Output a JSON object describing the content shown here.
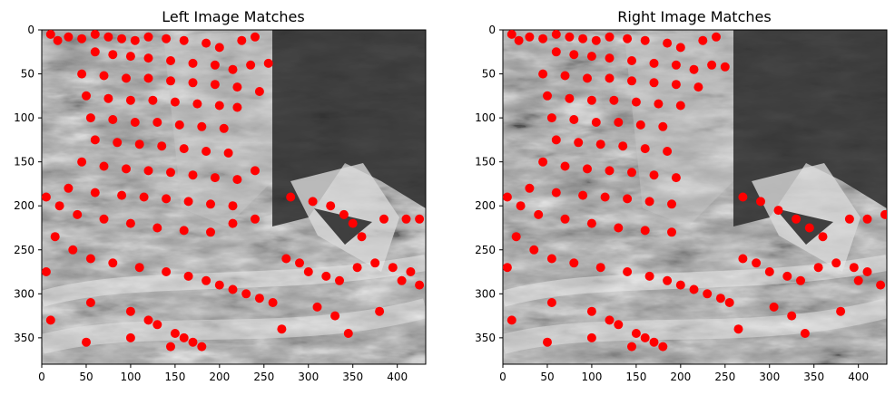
{
  "figure": {
    "background": "#ffffff",
    "point_color": "#ff0000"
  },
  "chart_data": [
    {
      "type": "scatter",
      "title": "Left Image Matches",
      "xlim": [
        0,
        432
      ],
      "ylim": [
        380,
        0
      ],
      "xticks": [
        0,
        50,
        100,
        150,
        200,
        250,
        300,
        350,
        400
      ],
      "yticks": [
        0,
        50,
        100,
        150,
        200,
        250,
        300,
        350
      ],
      "background_image": "grayscale painting with brush strokes",
      "series": [
        {
          "color": "#ff0000",
          "points": [
            [
              10,
              5
            ],
            [
              18,
              12
            ],
            [
              30,
              8
            ],
            [
              45,
              10
            ],
            [
              60,
              5
            ],
            [
              75,
              8
            ],
            [
              90,
              10
            ],
            [
              105,
              12
            ],
            [
              120,
              8
            ],
            [
              140,
              10
            ],
            [
              160,
              12
            ],
            [
              185,
              15
            ],
            [
              200,
              20
            ],
            [
              225,
              12
            ],
            [
              240,
              8
            ],
            [
              60,
              25
            ],
            [
              80,
              28
            ],
            [
              100,
              30
            ],
            [
              120,
              32
            ],
            [
              145,
              35
            ],
            [
              170,
              38
            ],
            [
              195,
              40
            ],
            [
              215,
              45
            ],
            [
              235,
              40
            ],
            [
              255,
              38
            ],
            [
              45,
              50
            ],
            [
              70,
              52
            ],
            [
              95,
              55
            ],
            [
              120,
              55
            ],
            [
              145,
              58
            ],
            [
              170,
              60
            ],
            [
              195,
              62
            ],
            [
              220,
              65
            ],
            [
              245,
              70
            ],
            [
              50,
              75
            ],
            [
              75,
              78
            ],
            [
              100,
              80
            ],
            [
              125,
              80
            ],
            [
              150,
              82
            ],
            [
              175,
              84
            ],
            [
              200,
              86
            ],
            [
              220,
              88
            ],
            [
              55,
              100
            ],
            [
              80,
              102
            ],
            [
              105,
              105
            ],
            [
              130,
              105
            ],
            [
              155,
              108
            ],
            [
              180,
              110
            ],
            [
              205,
              112
            ],
            [
              60,
              125
            ],
            [
              85,
              128
            ],
            [
              110,
              130
            ],
            [
              135,
              132
            ],
            [
              160,
              135
            ],
            [
              185,
              138
            ],
            [
              210,
              140
            ],
            [
              45,
              150
            ],
            [
              70,
              155
            ],
            [
              95,
              158
            ],
            [
              120,
              160
            ],
            [
              145,
              162
            ],
            [
              170,
              165
            ],
            [
              195,
              168
            ],
            [
              220,
              170
            ],
            [
              240,
              160
            ],
            [
              30,
              180
            ],
            [
              60,
              185
            ],
            [
              90,
              188
            ],
            [
              115,
              190
            ],
            [
              140,
              192
            ],
            [
              165,
              195
            ],
            [
              190,
              198
            ],
            [
              215,
              200
            ],
            [
              5,
              190
            ],
            [
              20,
              200
            ],
            [
              40,
              210
            ],
            [
              70,
              215
            ],
            [
              100,
              220
            ],
            [
              130,
              225
            ],
            [
              160,
              228
            ],
            [
              190,
              230
            ],
            [
              215,
              220
            ],
            [
              240,
              215
            ],
            [
              280,
              190
            ],
            [
              305,
              195
            ],
            [
              325,
              200
            ],
            [
              340,
              210
            ],
            [
              350,
              220
            ],
            [
              360,
              235
            ],
            [
              385,
              215
            ],
            [
              410,
              215
            ],
            [
              425,
              215
            ],
            [
              15,
              235
            ],
            [
              35,
              250
            ],
            [
              55,
              260
            ],
            [
              80,
              265
            ],
            [
              110,
              270
            ],
            [
              140,
              275
            ],
            [
              165,
              280
            ],
            [
              185,
              285
            ],
            [
              200,
              290
            ],
            [
              215,
              295
            ],
            [
              230,
              300
            ],
            [
              245,
              305
            ],
            [
              260,
              310
            ],
            [
              275,
              260
            ],
            [
              290,
              265
            ],
            [
              300,
              275
            ],
            [
              320,
              280
            ],
            [
              335,
              285
            ],
            [
              355,
              270
            ],
            [
              375,
              265
            ],
            [
              395,
              270
            ],
            [
              415,
              275
            ],
            [
              425,
              290
            ],
            [
              5,
              275
            ],
            [
              55,
              310
            ],
            [
              100,
              320
            ],
            [
              120,
              330
            ],
            [
              130,
              335
            ],
            [
              150,
              345
            ],
            [
              160,
              350
            ],
            [
              170,
              355
            ],
            [
              180,
              360
            ],
            [
              270,
              340
            ],
            [
              310,
              315
            ],
            [
              330,
              325
            ],
            [
              345,
              345
            ],
            [
              10,
              330
            ],
            [
              50,
              355
            ],
            [
              100,
              350
            ],
            [
              145,
              360
            ],
            [
              380,
              320
            ],
            [
              405,
              285
            ]
          ]
        }
      ]
    },
    {
      "type": "scatter",
      "title": "Right Image Matches",
      "xlim": [
        0,
        432
      ],
      "ylim": [
        380,
        0
      ],
      "xticks": [
        0,
        50,
        100,
        150,
        200,
        250,
        300,
        350,
        400
      ],
      "yticks": [
        0,
        50,
        100,
        150,
        200,
        250,
        300,
        350
      ],
      "background_image": "grayscale painting with brush strokes",
      "series": [
        {
          "color": "#ff0000",
          "points": [
            [
              10,
              5
            ],
            [
              18,
              12
            ],
            [
              30,
              8
            ],
            [
              45,
              10
            ],
            [
              60,
              5
            ],
            [
              75,
              8
            ],
            [
              90,
              10
            ],
            [
              105,
              12
            ],
            [
              120,
              8
            ],
            [
              140,
              10
            ],
            [
              160,
              12
            ],
            [
              185,
              15
            ],
            [
              200,
              20
            ],
            [
              225,
              12
            ],
            [
              240,
              8
            ],
            [
              60,
              25
            ],
            [
              80,
              28
            ],
            [
              100,
              30
            ],
            [
              120,
              32
            ],
            [
              145,
              35
            ],
            [
              170,
              38
            ],
            [
              195,
              40
            ],
            [
              215,
              45
            ],
            [
              235,
              40
            ],
            [
              250,
              42
            ],
            [
              45,
              50
            ],
            [
              70,
              52
            ],
            [
              95,
              55
            ],
            [
              120,
              55
            ],
            [
              145,
              58
            ],
            [
              170,
              60
            ],
            [
              195,
              62
            ],
            [
              220,
              65
            ],
            [
              50,
              75
            ],
            [
              75,
              78
            ],
            [
              100,
              80
            ],
            [
              125,
              80
            ],
            [
              150,
              82
            ],
            [
              175,
              84
            ],
            [
              200,
              86
            ],
            [
              55,
              100
            ],
            [
              80,
              102
            ],
            [
              105,
              105
            ],
            [
              130,
              105
            ],
            [
              155,
              108
            ],
            [
              180,
              110
            ],
            [
              60,
              125
            ],
            [
              85,
              128
            ],
            [
              110,
              130
            ],
            [
              135,
              132
            ],
            [
              160,
              135
            ],
            [
              185,
              138
            ],
            [
              45,
              150
            ],
            [
              70,
              155
            ],
            [
              95,
              158
            ],
            [
              120,
              160
            ],
            [
              145,
              162
            ],
            [
              170,
              165
            ],
            [
              195,
              168
            ],
            [
              30,
              180
            ],
            [
              60,
              185
            ],
            [
              90,
              188
            ],
            [
              115,
              190
            ],
            [
              140,
              192
            ],
            [
              165,
              195
            ],
            [
              190,
              198
            ],
            [
              5,
              190
            ],
            [
              20,
              200
            ],
            [
              40,
              210
            ],
            [
              70,
              215
            ],
            [
              100,
              220
            ],
            [
              130,
              225
            ],
            [
              160,
              228
            ],
            [
              190,
              230
            ],
            [
              270,
              190
            ],
            [
              290,
              195
            ],
            [
              310,
              205
            ],
            [
              330,
              215
            ],
            [
              345,
              225
            ],
            [
              360,
              235
            ],
            [
              390,
              215
            ],
            [
              410,
              215
            ],
            [
              430,
              210
            ],
            [
              15,
              235
            ],
            [
              35,
              250
            ],
            [
              55,
              260
            ],
            [
              80,
              265
            ],
            [
              110,
              270
            ],
            [
              140,
              275
            ],
            [
              165,
              280
            ],
            [
              185,
              285
            ],
            [
              200,
              290
            ],
            [
              215,
              295
            ],
            [
              230,
              300
            ],
            [
              245,
              305
            ],
            [
              255,
              310
            ],
            [
              270,
              260
            ],
            [
              285,
              265
            ],
            [
              300,
              275
            ],
            [
              320,
              280
            ],
            [
              335,
              285
            ],
            [
              355,
              270
            ],
            [
              375,
              265
            ],
            [
              395,
              270
            ],
            [
              410,
              275
            ],
            [
              425,
              290
            ],
            [
              5,
              270
            ],
            [
              55,
              310
            ],
            [
              100,
              320
            ],
            [
              120,
              330
            ],
            [
              130,
              335
            ],
            [
              150,
              345
            ],
            [
              160,
              350
            ],
            [
              170,
              355
            ],
            [
              180,
              360
            ],
            [
              265,
              340
            ],
            [
              305,
              315
            ],
            [
              325,
              325
            ],
            [
              340,
              345
            ],
            [
              10,
              330
            ],
            [
              50,
              355
            ],
            [
              100,
              350
            ],
            [
              145,
              360
            ],
            [
              380,
              320
            ],
            [
              400,
              285
            ]
          ]
        }
      ]
    }
  ]
}
